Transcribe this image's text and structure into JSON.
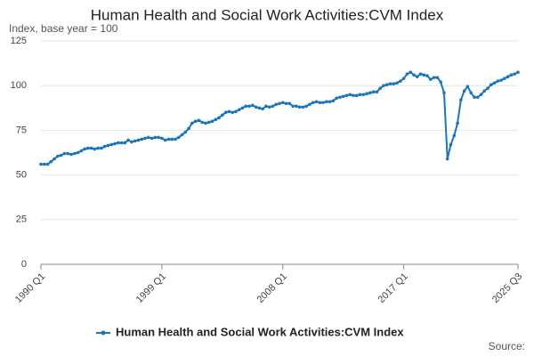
{
  "chart_data": {
    "type": "line",
    "title": "Human Health and Social Work Activities:CVM Index",
    "subtitle": "Index, base year = 100",
    "source": "Source:",
    "categories": [
      "1990 Q1",
      null,
      null,
      null,
      null,
      null,
      null,
      null,
      null,
      null,
      null,
      null,
      null,
      null,
      null,
      null,
      null,
      null,
      null,
      null,
      null,
      null,
      null,
      null,
      null,
      null,
      null,
      null,
      null,
      null,
      null,
      null,
      null,
      null,
      null,
      null,
      "1999 Q1",
      null,
      null,
      null,
      null,
      null,
      null,
      null,
      null,
      null,
      null,
      null,
      null,
      null,
      null,
      null,
      null,
      null,
      null,
      null,
      null,
      null,
      null,
      null,
      null,
      null,
      null,
      null,
      null,
      null,
      null,
      null,
      null,
      null,
      null,
      null,
      "2008 Q1",
      null,
      null,
      null,
      null,
      null,
      null,
      null,
      null,
      null,
      null,
      null,
      null,
      null,
      null,
      null,
      null,
      null,
      null,
      null,
      null,
      null,
      null,
      null,
      null,
      null,
      null,
      null,
      null,
      null,
      null,
      null,
      null,
      null,
      null,
      null,
      "2017 Q1",
      null,
      null,
      null,
      null,
      null,
      null,
      null,
      null,
      null,
      null,
      null,
      null,
      null,
      null,
      null,
      null,
      null,
      null,
      null,
      null,
      null,
      null,
      null,
      null,
      null,
      null,
      null,
      null,
      null,
      null,
      null,
      null,
      null,
      "2025 Q3"
    ],
    "series": [
      {
        "name": "Human Health and Social Work Activities:CVM Index",
        "color": "#1b75bb",
        "values": [
          56,
          56,
          56,
          57.5,
          59,
          60.5,
          61,
          62,
          62,
          61.5,
          62,
          62.5,
          63.5,
          64.5,
          65,
          65,
          64.5,
          65,
          65,
          66,
          66.5,
          67,
          67.5,
          68,
          68,
          68,
          69.5,
          68.5,
          69,
          69.5,
          70,
          70.5,
          71,
          70.5,
          71,
          71,
          70.5,
          69.5,
          70,
          70,
          70,
          71,
          72.5,
          74,
          76,
          79,
          80,
          80.5,
          79.5,
          79,
          79.5,
          80,
          81,
          82,
          83.5,
          85,
          85.5,
          85,
          85.5,
          86.5,
          87.5,
          88.5,
          88.5,
          89,
          88,
          87.5,
          87,
          88.5,
          88,
          88.5,
          89.5,
          90,
          90.5,
          90,
          90,
          88.5,
          88.5,
          88,
          88,
          88.5,
          89.5,
          90.5,
          91,
          90.5,
          90.5,
          91,
          91,
          91.5,
          93,
          93.5,
          94,
          94.5,
          95,
          94.5,
          94.5,
          95,
          95,
          95.5,
          96,
          96.5,
          96.5,
          98.5,
          100,
          100.5,
          101,
          101,
          101.5,
          102.5,
          104,
          106.5,
          107.5,
          106,
          105,
          106.5,
          106,
          105.5,
          103.5,
          104.5,
          104.5,
          102,
          96,
          59,
          67,
          72,
          79,
          92,
          97,
          99.5,
          96,
          93.5,
          93.5,
          95,
          97,
          98.5,
          100.5,
          101.5,
          102.5,
          103,
          104,
          105,
          106,
          106.5,
          107.5
        ]
      }
    ],
    "ylim": [
      0,
      125
    ],
    "yticks": [
      0,
      25,
      50,
      75,
      100,
      125
    ],
    "grid": true
  }
}
